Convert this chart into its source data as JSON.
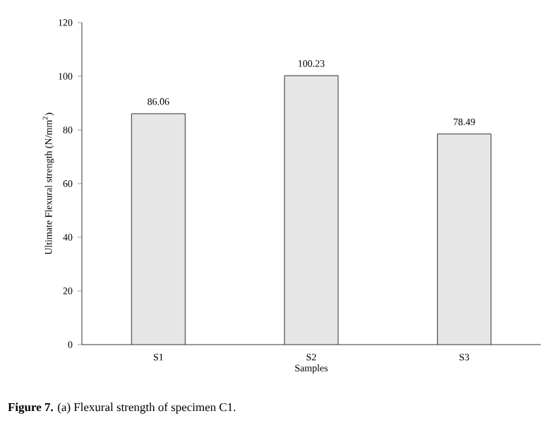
{
  "chart_data": {
    "type": "bar",
    "categories": [
      "S1",
      "S2",
      "S3"
    ],
    "values": [
      86.06,
      100.23,
      78.49
    ],
    "color": "#e6e6e6",
    "ylim": [
      0,
      120
    ],
    "yticks": [
      0,
      20,
      40,
      60,
      80,
      100,
      120
    ],
    "xlabel": "Samples",
    "ylabel": "Ultimate Flexural strength (N/mm$^{2}$)",
    "data_labels": true,
    "annotations": [
      "**Figure 7.** (a) Flexural strength of specimen C1."
    ]
  }
}
